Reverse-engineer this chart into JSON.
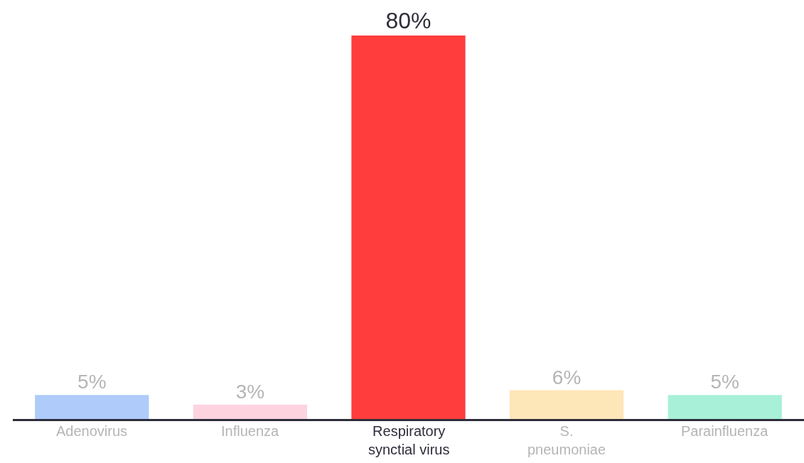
{
  "chart_data": {
    "type": "bar",
    "categories": [
      "Adenovirus",
      "Influenza",
      "Respiratory synctial virus",
      "S. pneumoniae",
      "Parainfluenza"
    ],
    "values": [
      5,
      3,
      80,
      6,
      5
    ],
    "colors": [
      "#aecbfa",
      "#fdd3e0",
      "#ff3d3d",
      "#fde6b8",
      "#a8f0d8"
    ],
    "value_labels": [
      "5%",
      "3%",
      "80%",
      "6%",
      "5%"
    ],
    "legend": false
  }
}
